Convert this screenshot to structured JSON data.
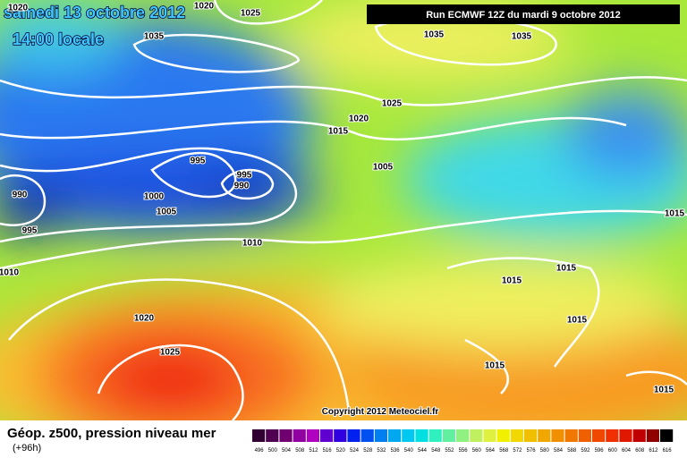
{
  "header": {
    "date": "samedi 13 octobre 2012",
    "time": "14:00 locale",
    "run": "Run ECMWF 12Z du mardi 9 octobre 2012"
  },
  "map": {
    "isobar_labels": [
      "1020",
      "1020",
      "1025",
      "1035",
      "1035",
      "1035",
      "1025",
      "1020",
      "1015",
      "995",
      "1005",
      "995",
      "990",
      "990",
      "1000",
      "1005",
      "995",
      "1010",
      "1015",
      "1010",
      "1015",
      "1015",
      "1020",
      "1015",
      "1025",
      "1015",
      "1015"
    ],
    "copyright": "Copyright 2012 Meteociel.fr"
  },
  "footer": {
    "title": "Géop. z500, pression niveau mer",
    "lead": "(+96h)",
    "scale": [
      {
        "label": 496,
        "color": "#300030"
      },
      {
        "label": 500,
        "color": "#500050"
      },
      {
        "label": 504,
        "color": "#700070"
      },
      {
        "label": 508,
        "color": "#9000a0"
      },
      {
        "label": 512,
        "color": "#b000c0"
      },
      {
        "label": 516,
        "color": "#6000d0"
      },
      {
        "label": 520,
        "color": "#3000e0"
      },
      {
        "label": 524,
        "color": "#0020f0"
      },
      {
        "label": 528,
        "color": "#0050f0"
      },
      {
        "label": 532,
        "color": "#0080f0"
      },
      {
        "label": 536,
        "color": "#00a8f0"
      },
      {
        "label": 540,
        "color": "#00c8f0"
      },
      {
        "label": 544,
        "color": "#00e0e0"
      },
      {
        "label": 548,
        "color": "#30f0c0"
      },
      {
        "label": 552,
        "color": "#60f0a0"
      },
      {
        "label": 556,
        "color": "#90f080"
      },
      {
        "label": 560,
        "color": "#c0f060"
      },
      {
        "label": 564,
        "color": "#e0f040"
      },
      {
        "label": 568,
        "color": "#f0f000"
      },
      {
        "label": 572,
        "color": "#f0d800"
      },
      {
        "label": 576,
        "color": "#f0c000"
      },
      {
        "label": 580,
        "color": "#f0a800"
      },
      {
        "label": 584,
        "color": "#f09000"
      },
      {
        "label": 588,
        "color": "#f07800"
      },
      {
        "label": 592,
        "color": "#f06000"
      },
      {
        "label": 596,
        "color": "#f04800"
      },
      {
        "label": 600,
        "color": "#f03000"
      },
      {
        "label": 604,
        "color": "#e01800"
      },
      {
        "label": 608,
        "color": "#c00000"
      },
      {
        "label": 612,
        "color": "#900000"
      },
      {
        "label": 616,
        "color": "#000000"
      }
    ]
  }
}
